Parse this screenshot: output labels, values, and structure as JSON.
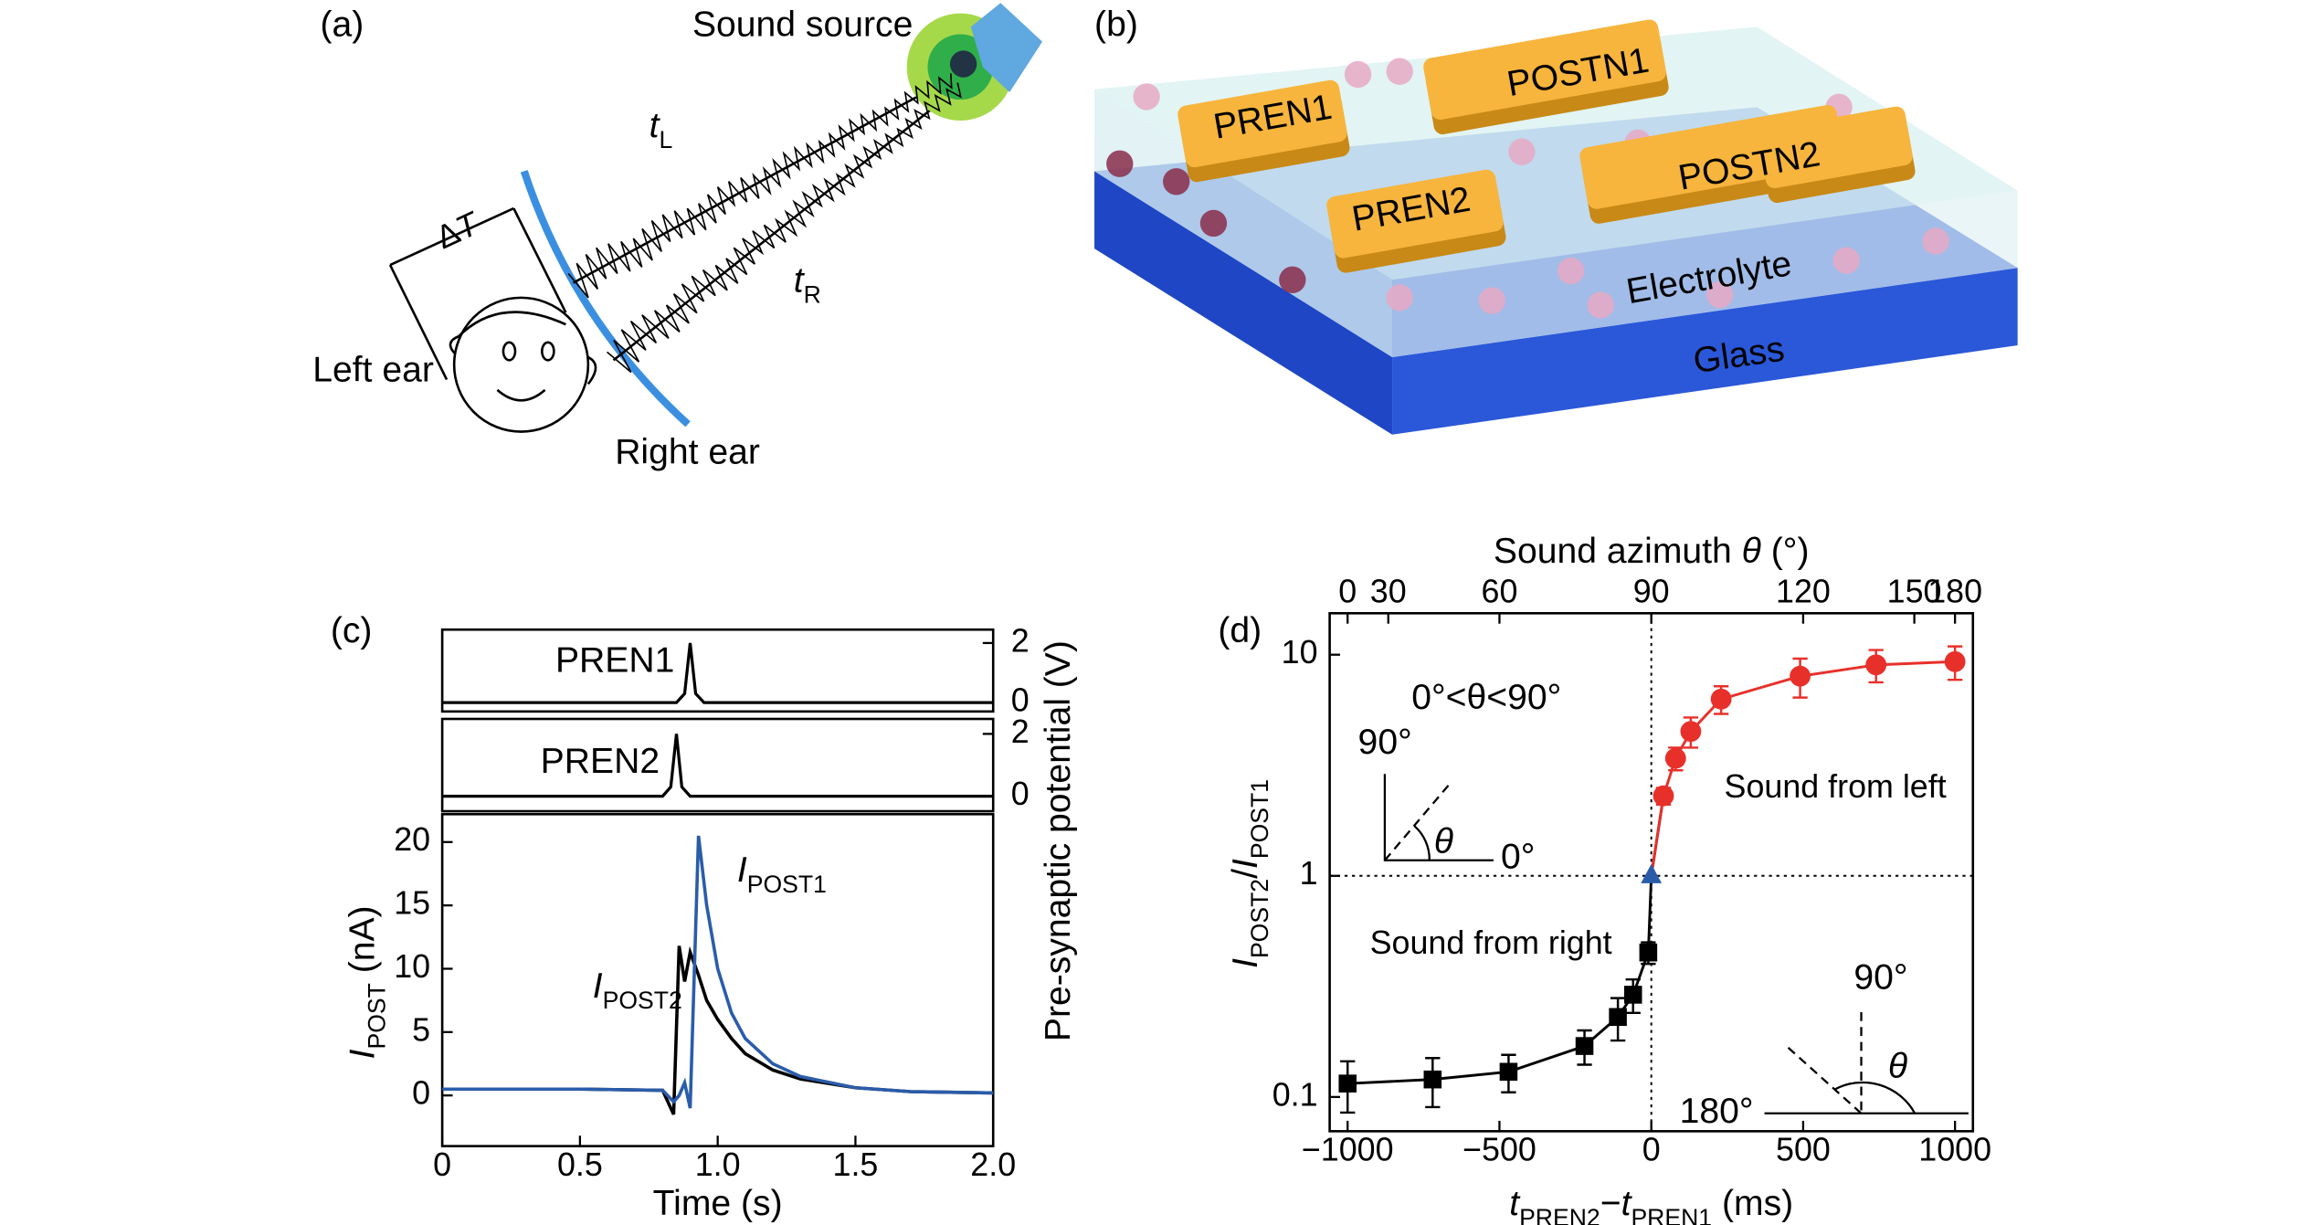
{
  "figure": {
    "panel_a": {
      "label": "(a)",
      "sound_source": "Sound source",
      "t_left": [
        {
          "text": "t",
          "style": "italic"
        },
        {
          "text": "L",
          "style": "sub"
        }
      ],
      "delta_t": [
        {
          "text": "Δ",
          "style": "normal"
        },
        {
          "text": "T",
          "style": "italic"
        }
      ],
      "t_right": [
        {
          "text": "t",
          "style": "italic"
        },
        {
          "text": "R",
          "style": "sub"
        }
      ],
      "left_ear": "Left ear",
      "right_ear": "Right ear"
    },
    "panel_b": {
      "label": "(b)",
      "electrodes": [
        "PREN1",
        "POSTN1",
        "PREN2",
        "POSTN2"
      ],
      "electrolyte": "Electrolyte",
      "glass": "Glass"
    }
  },
  "chart_data": [
    {
      "type": "line",
      "panel_label": "(c)",
      "name": "PREN1",
      "color": "#000000",
      "x": [
        0,
        0.85,
        0.88,
        0.9,
        0.92,
        0.95,
        2.0
      ],
      "values": [
        0,
        0,
        0.3,
        2,
        0.3,
        0,
        0
      ],
      "xlim": [
        0,
        2
      ],
      "ylim": [
        -0.3,
        2.45
      ],
      "yticks": [
        0,
        2
      ]
    },
    {
      "type": "line",
      "name": "PREN2",
      "color": "#000000",
      "x": [
        0,
        0.8,
        0.83,
        0.85,
        0.87,
        0.9,
        2.0
      ],
      "values": [
        0,
        0,
        0.3,
        2,
        0.3,
        0,
        0
      ],
      "xlim": [
        0,
        2
      ],
      "ylim": [
        -0.48,
        2.48
      ],
      "yticks": [
        0,
        2
      ]
    },
    {
      "type": "line",
      "x": [
        0,
        0.5,
        0.8,
        0.84,
        0.86,
        0.88,
        0.9,
        0.93,
        0.96,
        1.0,
        1.05,
        1.1,
        1.2,
        1.3,
        1.5,
        1.7,
        2.0
      ],
      "series": [
        {
          "name": [
            {
              "text": "I",
              "style": "italic"
            },
            {
              "text": "POST2",
              "style": "sub"
            }
          ],
          "color": "#000000",
          "values": [
            0.5,
            0.5,
            0.4,
            -1.5,
            11.8,
            9,
            11.3,
            9.5,
            7.5,
            6,
            4.5,
            3.3,
            2,
            1.3,
            0.6,
            0.3,
            0.2
          ]
        },
        {
          "name": [
            {
              "text": "I",
              "style": "italic"
            },
            {
              "text": "POST1",
              "style": "sub"
            }
          ],
          "color": "#2a5caa",
          "values": [
            0.5,
            0.5,
            0.4,
            -0.5,
            0,
            1,
            -1,
            20.5,
            15,
            10,
            6.5,
            4.5,
            2.5,
            1.5,
            0.6,
            0.3,
            0.2
          ]
        }
      ],
      "xlim": [
        0,
        2
      ],
      "ylim": [
        -4,
        22.2
      ],
      "xticks": [
        0,
        0.5,
        {
          "value": 1,
          "label": "1.0"
        },
        1.5,
        {
          "value": 2,
          "label": "2.0"
        }
      ],
      "yticks": [
        0,
        5,
        10,
        15,
        20
      ],
      "x_label": "Time (s)",
      "y_label": [
        {
          "text": "I",
          "style": "italic"
        },
        {
          "text": "POST",
          "style": "sub"
        },
        {
          "text": " (nA)",
          "style": "normal"
        }
      ],
      "y2_label": "Pre-synaptic potential (V)"
    },
    {
      "type": "scatter",
      "panel_label": "(d)",
      "x2_label": [
        {
          "text": "Sound azimuth ",
          "style": "normal"
        },
        {
          "text": "θ",
          "style": "italic"
        },
        {
          "text": " (°)",
          "style": "normal"
        }
      ],
      "x2ticks": [
        0,
        30,
        60,
        90,
        120,
        150,
        180
      ],
      "x2map": {
        "type": "negative-cosine",
        "scale": 1000
      },
      "x_label": [
        {
          "text": "t",
          "style": "italic"
        },
        {
          "text": "PREN2",
          "style": "sub"
        },
        {
          "text": "−",
          "style": "normal"
        },
        {
          "text": "t",
          "style": "italic"
        },
        {
          "text": "PREN1",
          "style": "sub"
        },
        {
          "text": " (ms)",
          "style": "normal"
        }
      ],
      "y_label": [
        {
          "text": "I",
          "style": "italic"
        },
        {
          "text": "POST2",
          "style": "sub"
        },
        {
          "text": "/",
          "style": "normal"
        },
        {
          "text": "I",
          "style": "italic"
        },
        {
          "text": "POST1",
          "style": "sub"
        }
      ],
      "xlim": [
        -1059,
        1059
      ],
      "xticks": [
        {
          "value": -1000,
          "label": "−1000"
        },
        {
          "value": -500,
          "label": "−500"
        },
        0,
        500,
        1000
      ],
      "ylim": [
        0.07,
        15.4
      ],
      "yscale": "log",
      "yticks": [
        0.1,
        1,
        10
      ],
      "reflines": {
        "x": 0,
        "y": 1
      },
      "series": [
        {
          "marker": "square",
          "color": "#000000",
          "x": [
            -1000,
            -720,
            -470,
            -220,
            -110,
            -60,
            -10
          ],
          "values": [
            0.115,
            0.12,
            0.13,
            0.17,
            0.23,
            0.29,
            0.45
          ],
          "errors": [
            0.03,
            0.03,
            0.025,
            0.03,
            0.05,
            0.05,
            0.05
          ]
        },
        {
          "marker": "triangle",
          "color": "#2a5caa",
          "x": [
            0
          ],
          "values": [
            1
          ]
        },
        {
          "marker": "circle",
          "color": "#e8302a",
          "x": [
            40,
            80,
            130,
            230,
            490,
            740,
            1000
          ],
          "values": [
            2.3,
            3.4,
            4.5,
            6.3,
            8.0,
            9.0,
            9.3
          ],
          "errors": [
            0.2,
            0.4,
            0.7,
            0.9,
            1.6,
            1.5,
            1.6
          ]
        }
      ],
      "annotations": {
        "range": "0°<θ<90°",
        "sound_left": "Sound from left",
        "sound_right": "Sound from right",
        "inset_right": [
          "90°",
          "θ",
          "0°"
        ],
        "inset_left": [
          "90°",
          "θ",
          "180°"
        ]
      }
    }
  ]
}
